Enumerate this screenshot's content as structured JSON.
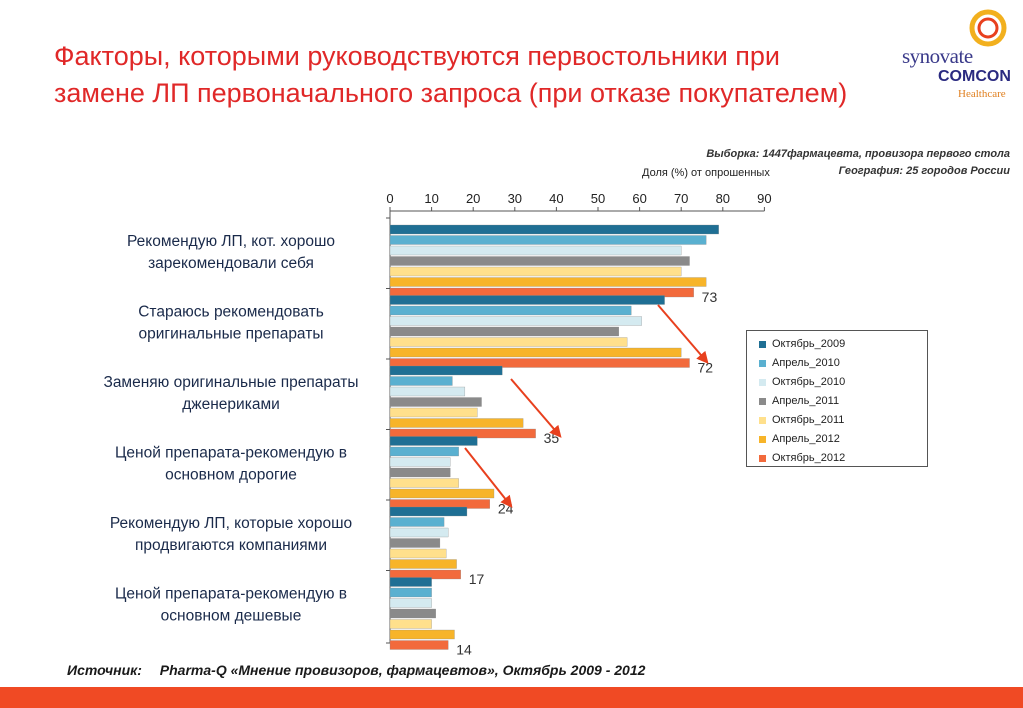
{
  "title": "Факторы, которыми руководствуются первостольники при замене ЛП первоначального запроса (при отказе покупателем)",
  "logo": {
    "line1": "synovate",
    "line2": "COMCON",
    "line3": "Healthcare"
  },
  "sample": {
    "line1": "Выборка: 1447фармацевта, провизора первого стола",
    "line2": "География: 25 городов  России"
  },
  "share_note": "Доля (%) от опрошенных",
  "source": {
    "label": "Источник:",
    "text": "Pharma-Q «Мнение провизоров, фармацевтов», Октябрь 2009 - 2012"
  },
  "colors": {
    "title": "#e02828",
    "footer": "#f04a24",
    "arrow": "#e8401e"
  },
  "chart_data": {
    "type": "bar",
    "orientation": "horizontal",
    "xlim": [
      0,
      90
    ],
    "xticks": [
      0,
      10,
      20,
      30,
      40,
      50,
      60,
      70,
      80,
      90
    ],
    "categories": [
      "Рекомендую ЛП, кот. хорошо зарекомендовали себя",
      "Стараюсь рекомендовать оригинальные препараты",
      "Заменяю оригинальные препараты дженериками",
      "Ценой препарата-рекомендую в основном дорогие",
      "Рекомендую ЛП, которые хорошо продвигаются компаниями",
      "Ценой препарата-рекомендую в основном дешевые"
    ],
    "series": [
      {
        "name": "Октябрь_2009",
        "color": "#1f6f94",
        "values": [
          79,
          66,
          27,
          21,
          18.5,
          10
        ]
      },
      {
        "name": "Апрель_2010",
        "color": "#5ab0d0",
        "values": [
          76,
          58,
          15,
          16.5,
          13,
          10
        ]
      },
      {
        "name": "Октябрь_2010",
        "color": "#d4eaf0",
        "values": [
          70,
          60.5,
          18,
          14.5,
          14,
          10
        ]
      },
      {
        "name": "Апрель_2011",
        "color": "#8a8a8a",
        "values": [
          72,
          55,
          22,
          14.5,
          12,
          11
        ]
      },
      {
        "name": "Октябрь_2011",
        "color": "#ffe08c",
        "values": [
          70,
          57,
          21,
          16.5,
          13.5,
          10
        ]
      },
      {
        "name": "Апрель_2012",
        "color": "#f7b429",
        "values": [
          76,
          70,
          32,
          25,
          16,
          15.5
        ]
      },
      {
        "name": "Октябрь_2012",
        "color": "#f26a3c",
        "values": [
          73,
          72,
          35,
          24,
          17,
          14
        ]
      }
    ],
    "data_labels": [
      "73",
      "72",
      "35",
      "24",
      "17",
      "14"
    ],
    "legend_position": "right"
  }
}
